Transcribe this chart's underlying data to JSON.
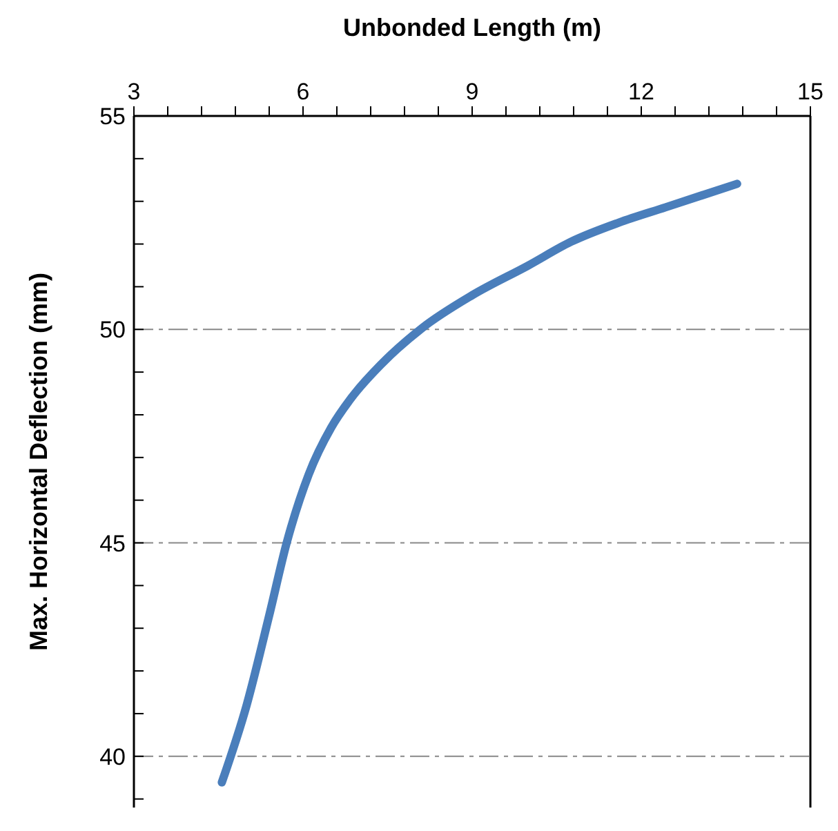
{
  "chart_data": {
    "type": "line",
    "xlabel": "Unbonded Length (m)",
    "ylabel": "Max. Horizontal Deflection (mm)",
    "x": [
      4.56,
      5.0,
      5.4,
      5.71,
      6.1,
      6.5,
      6.86,
      7.4,
      8.11,
      9.0,
      10.0,
      10.75,
      11.6,
      12.43,
      13.7
    ],
    "series": [
      {
        "color": "#4a7ebb",
        "values": [
          39.39,
          41.2,
          43.3,
          45.0,
          46.6,
          47.7,
          48.4,
          49.2,
          50.03,
          50.8,
          51.5,
          52.05,
          52.5,
          52.86,
          53.41
        ]
      }
    ],
    "xlim": [
      3,
      15
    ],
    "ylim": [
      38.8,
      55
    ],
    "xticks": [
      3,
      {
        "value": 3.6,
        "label": null
      },
      {
        "value": 4.2,
        "label": null
      },
      {
        "value": 4.8,
        "label": null
      },
      {
        "value": 5.4,
        "label": null
      },
      6,
      {
        "value": 6.6,
        "label": null
      },
      {
        "value": 7.2,
        "label": null
      },
      {
        "value": 7.8,
        "label": null
      },
      {
        "value": 8.4,
        "label": null
      },
      9,
      {
        "value": 9.6,
        "label": null
      },
      {
        "value": 10.2,
        "label": null
      },
      {
        "value": 10.8,
        "label": null
      },
      {
        "value": 11.4,
        "label": null
      },
      12,
      {
        "value": 12.6,
        "label": null
      },
      {
        "value": 13.2,
        "label": null
      },
      {
        "value": 13.8,
        "label": null
      },
      {
        "value": 14.4,
        "label": null
      },
      15
    ],
    "yticks": [
      {
        "value": 39,
        "label": null
      },
      40,
      {
        "value": 41,
        "label": null
      },
      {
        "value": 42,
        "label": null
      },
      {
        "value": 43,
        "label": null
      },
      {
        "value": 44,
        "label": null
      },
      45,
      {
        "value": 46,
        "label": null
      },
      {
        "value": 47,
        "label": null
      },
      {
        "value": 48,
        "label": null
      },
      {
        "value": 49,
        "label": null
      },
      50,
      {
        "value": 51,
        "label": null
      },
      {
        "value": 52,
        "label": null
      },
      {
        "value": 53,
        "label": null
      },
      {
        "value": 54,
        "label": null
      },
      55
    ],
    "grid": "y",
    "marker": "none",
    "line_style": "solid"
  }
}
